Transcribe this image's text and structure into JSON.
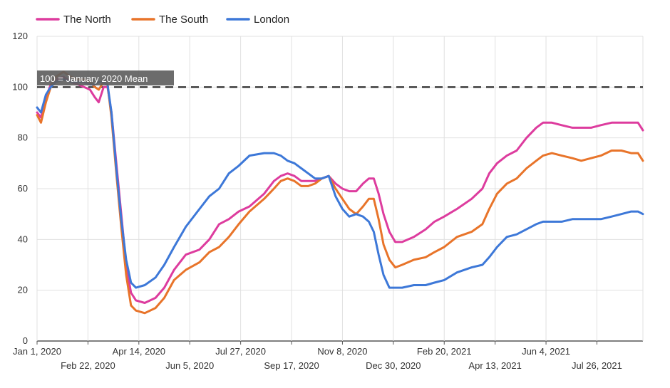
{
  "chart_data": {
    "type": "line",
    "title": "",
    "xlabel": "",
    "ylabel": "",
    "ylim": [
      0,
      120
    ],
    "y_ticks": [
      0,
      20,
      40,
      60,
      80,
      100,
      120
    ],
    "x_range": [
      "2020-01-01",
      "2021-09-11"
    ],
    "x_ticks": [
      {
        "date": "2020-01-01",
        "label": "Jan 1, 2020",
        "row": 1
      },
      {
        "date": "2020-02-22",
        "label": "Feb 22, 2020",
        "row": 2
      },
      {
        "date": "2020-04-14",
        "label": "Apr 14, 2020",
        "row": 1
      },
      {
        "date": "2020-06-05",
        "label": "Jun 5, 2020",
        "row": 2
      },
      {
        "date": "2020-07-27",
        "label": "Jul 27, 2020",
        "row": 1
      },
      {
        "date": "2020-09-17",
        "label": "Sep 17, 2020",
        "row": 2
      },
      {
        "date": "2020-11-08",
        "label": "Nov 8, 2020",
        "row": 1
      },
      {
        "date": "2020-12-30",
        "label": "Dec 30, 2020",
        "row": 2
      },
      {
        "date": "2021-02-20",
        "label": "Feb 20, 2021",
        "row": 1
      },
      {
        "date": "2021-04-13",
        "label": "Apr 13, 2021",
        "row": 2
      },
      {
        "date": "2021-06-04",
        "label": "Jun 4, 2021",
        "row": 1
      },
      {
        "date": "2021-07-26",
        "label": "Jul 26, 2021",
        "row": 2
      }
    ],
    "grid": true,
    "legend_position": "top-left",
    "reference_line": {
      "y": 100,
      "label": "100 = January 2020 Mean",
      "style": "dashed",
      "color": "#222222"
    },
    "series": [
      {
        "name": "The North",
        "color": "#DD3C9E",
        "points": [
          [
            "2020-01-01",
            90
          ],
          [
            "2020-01-05",
            88
          ],
          [
            "2020-01-10",
            96
          ],
          [
            "2020-01-15",
            101
          ],
          [
            "2020-01-20",
            103
          ],
          [
            "2020-01-28",
            104
          ],
          [
            "2020-02-05",
            102
          ],
          [
            "2020-02-12",
            101
          ],
          [
            "2020-02-18",
            100
          ],
          [
            "2020-02-24",
            99
          ],
          [
            "2020-02-29",
            96
          ],
          [
            "2020-03-04",
            94
          ],
          [
            "2020-03-09",
            100
          ],
          [
            "2020-03-13",
            100
          ],
          [
            "2020-03-17",
            90
          ],
          [
            "2020-03-22",
            70
          ],
          [
            "2020-03-27",
            50
          ],
          [
            "2020-04-01",
            30
          ],
          [
            "2020-04-06",
            19
          ],
          [
            "2020-04-11",
            16
          ],
          [
            "2020-04-20",
            15
          ],
          [
            "2020-05-01",
            17
          ],
          [
            "2020-05-10",
            21
          ],
          [
            "2020-05-20",
            28
          ],
          [
            "2020-06-01",
            34
          ],
          [
            "2020-06-15",
            36
          ],
          [
            "2020-06-25",
            40
          ],
          [
            "2020-07-05",
            46
          ],
          [
            "2020-07-15",
            48
          ],
          [
            "2020-07-25",
            51
          ],
          [
            "2020-08-05",
            53
          ],
          [
            "2020-08-20",
            58
          ],
          [
            "2020-08-30",
            63
          ],
          [
            "2020-09-06",
            65
          ],
          [
            "2020-09-13",
            66
          ],
          [
            "2020-09-20",
            65
          ],
          [
            "2020-09-27",
            63
          ],
          [
            "2020-10-04",
            63
          ],
          [
            "2020-10-11",
            63
          ],
          [
            "2020-10-18",
            64
          ],
          [
            "2020-10-25",
            65
          ],
          [
            "2020-11-01",
            62
          ],
          [
            "2020-11-08",
            60
          ],
          [
            "2020-11-15",
            59
          ],
          [
            "2020-11-22",
            59
          ],
          [
            "2020-11-29",
            62
          ],
          [
            "2020-12-05",
            64
          ],
          [
            "2020-12-10",
            64
          ],
          [
            "2020-12-15",
            58
          ],
          [
            "2020-12-20",
            50
          ],
          [
            "2020-12-26",
            43
          ],
          [
            "2021-01-01",
            39
          ],
          [
            "2021-01-08",
            39
          ],
          [
            "2021-01-20",
            41
          ],
          [
            "2021-02-01",
            44
          ],
          [
            "2021-02-10",
            47
          ],
          [
            "2021-02-20",
            49
          ],
          [
            "2021-03-05",
            52
          ],
          [
            "2021-03-20",
            56
          ],
          [
            "2021-03-31",
            60
          ],
          [
            "2021-04-07",
            66
          ],
          [
            "2021-04-15",
            70
          ],
          [
            "2021-04-25",
            73
          ],
          [
            "2021-05-05",
            75
          ],
          [
            "2021-05-15",
            80
          ],
          [
            "2021-05-25",
            84
          ],
          [
            "2021-06-01",
            86
          ],
          [
            "2021-06-10",
            86
          ],
          [
            "2021-06-20",
            85
          ],
          [
            "2021-07-01",
            84
          ],
          [
            "2021-07-10",
            84
          ],
          [
            "2021-07-20",
            84
          ],
          [
            "2021-07-30",
            85
          ],
          [
            "2021-08-10",
            86
          ],
          [
            "2021-08-20",
            86
          ],
          [
            "2021-08-30",
            86
          ],
          [
            "2021-09-06",
            86
          ],
          [
            "2021-09-11",
            83
          ]
        ]
      },
      {
        "name": "The South",
        "color": "#E8742A",
        "points": [
          [
            "2020-01-01",
            89
          ],
          [
            "2020-01-05",
            86
          ],
          [
            "2020-01-10",
            94
          ],
          [
            "2020-01-15",
            100
          ],
          [
            "2020-01-20",
            104
          ],
          [
            "2020-01-28",
            106
          ],
          [
            "2020-02-05",
            104
          ],
          [
            "2020-02-12",
            103
          ],
          [
            "2020-02-18",
            103
          ],
          [
            "2020-02-24",
            102
          ],
          [
            "2020-02-29",
            100
          ],
          [
            "2020-03-04",
            99
          ],
          [
            "2020-03-09",
            102
          ],
          [
            "2020-03-13",
            101
          ],
          [
            "2020-03-17",
            88
          ],
          [
            "2020-03-22",
            66
          ],
          [
            "2020-03-27",
            45
          ],
          [
            "2020-04-01",
            26
          ],
          [
            "2020-04-06",
            14
          ],
          [
            "2020-04-11",
            12
          ],
          [
            "2020-04-20",
            11
          ],
          [
            "2020-05-01",
            13
          ],
          [
            "2020-05-10",
            17
          ],
          [
            "2020-05-20",
            24
          ],
          [
            "2020-06-01",
            28
          ],
          [
            "2020-06-15",
            31
          ],
          [
            "2020-06-25",
            35
          ],
          [
            "2020-07-05",
            37
          ],
          [
            "2020-07-15",
            41
          ],
          [
            "2020-07-25",
            46
          ],
          [
            "2020-08-05",
            51
          ],
          [
            "2020-08-20",
            56
          ],
          [
            "2020-08-30",
            60
          ],
          [
            "2020-09-06",
            63
          ],
          [
            "2020-09-13",
            64
          ],
          [
            "2020-09-20",
            63
          ],
          [
            "2020-09-27",
            61
          ],
          [
            "2020-10-04",
            61
          ],
          [
            "2020-10-11",
            62
          ],
          [
            "2020-10-18",
            64
          ],
          [
            "2020-10-25",
            65
          ],
          [
            "2020-11-01",
            60
          ],
          [
            "2020-11-08",
            56
          ],
          [
            "2020-11-15",
            52
          ],
          [
            "2020-11-22",
            50
          ],
          [
            "2020-11-29",
            53
          ],
          [
            "2020-12-05",
            56
          ],
          [
            "2020-12-10",
            56
          ],
          [
            "2020-12-15",
            48
          ],
          [
            "2020-12-20",
            38
          ],
          [
            "2020-12-26",
            32
          ],
          [
            "2021-01-01",
            29
          ],
          [
            "2021-01-08",
            30
          ],
          [
            "2021-01-20",
            32
          ],
          [
            "2021-02-01",
            33
          ],
          [
            "2021-02-10",
            35
          ],
          [
            "2021-02-20",
            37
          ],
          [
            "2021-03-05",
            41
          ],
          [
            "2021-03-20",
            43
          ],
          [
            "2021-03-31",
            46
          ],
          [
            "2021-04-07",
            52
          ],
          [
            "2021-04-15",
            58
          ],
          [
            "2021-04-25",
            62
          ],
          [
            "2021-05-05",
            64
          ],
          [
            "2021-05-15",
            68
          ],
          [
            "2021-05-25",
            71
          ],
          [
            "2021-06-01",
            73
          ],
          [
            "2021-06-10",
            74
          ],
          [
            "2021-06-20",
            73
          ],
          [
            "2021-07-01",
            72
          ],
          [
            "2021-07-10",
            71
          ],
          [
            "2021-07-20",
            72
          ],
          [
            "2021-07-30",
            73
          ],
          [
            "2021-08-10",
            75
          ],
          [
            "2021-08-20",
            75
          ],
          [
            "2021-08-30",
            74
          ],
          [
            "2021-09-06",
            74
          ],
          [
            "2021-09-11",
            71
          ]
        ]
      },
      {
        "name": "London",
        "color": "#3D78D8",
        "points": [
          [
            "2020-01-01",
            92
          ],
          [
            "2020-01-05",
            90
          ],
          [
            "2020-01-10",
            97
          ],
          [
            "2020-01-15",
            100
          ],
          [
            "2020-01-20",
            102
          ],
          [
            "2020-01-28",
            103
          ],
          [
            "2020-02-05",
            102
          ],
          [
            "2020-02-12",
            102
          ],
          [
            "2020-02-18",
            102
          ],
          [
            "2020-02-24",
            101
          ],
          [
            "2020-02-29",
            101
          ],
          [
            "2020-03-04",
            102
          ],
          [
            "2020-03-09",
            102
          ],
          [
            "2020-03-13",
            101
          ],
          [
            "2020-03-17",
            90
          ],
          [
            "2020-03-22",
            68
          ],
          [
            "2020-03-27",
            48
          ],
          [
            "2020-04-01",
            32
          ],
          [
            "2020-04-06",
            23
          ],
          [
            "2020-04-11",
            21
          ],
          [
            "2020-04-20",
            22
          ],
          [
            "2020-05-01",
            25
          ],
          [
            "2020-05-10",
            30
          ],
          [
            "2020-05-20",
            37
          ],
          [
            "2020-06-01",
            45
          ],
          [
            "2020-06-15",
            52
          ],
          [
            "2020-06-25",
            57
          ],
          [
            "2020-07-05",
            60
          ],
          [
            "2020-07-15",
            66
          ],
          [
            "2020-07-25",
            69
          ],
          [
            "2020-08-05",
            73
          ],
          [
            "2020-08-20",
            74
          ],
          [
            "2020-08-30",
            74
          ],
          [
            "2020-09-06",
            73
          ],
          [
            "2020-09-13",
            71
          ],
          [
            "2020-09-20",
            70
          ],
          [
            "2020-09-27",
            68
          ],
          [
            "2020-10-04",
            66
          ],
          [
            "2020-10-11",
            64
          ],
          [
            "2020-10-18",
            64
          ],
          [
            "2020-10-25",
            65
          ],
          [
            "2020-11-01",
            57
          ],
          [
            "2020-11-08",
            52
          ],
          [
            "2020-11-15",
            49
          ],
          [
            "2020-11-22",
            50
          ],
          [
            "2020-11-29",
            49
          ],
          [
            "2020-12-05",
            47
          ],
          [
            "2020-12-10",
            43
          ],
          [
            "2020-12-15",
            34
          ],
          [
            "2020-12-20",
            26
          ],
          [
            "2020-12-26",
            21
          ],
          [
            "2021-01-01",
            21
          ],
          [
            "2021-01-08",
            21
          ],
          [
            "2021-01-20",
            22
          ],
          [
            "2021-02-01",
            22
          ],
          [
            "2021-02-10",
            23
          ],
          [
            "2021-02-20",
            24
          ],
          [
            "2021-03-05",
            27
          ],
          [
            "2021-03-20",
            29
          ],
          [
            "2021-03-31",
            30
          ],
          [
            "2021-04-07",
            33
          ],
          [
            "2021-04-15",
            37
          ],
          [
            "2021-04-25",
            41
          ],
          [
            "2021-05-05",
            42
          ],
          [
            "2021-05-15",
            44
          ],
          [
            "2021-05-25",
            46
          ],
          [
            "2021-06-01",
            47
          ],
          [
            "2021-06-10",
            47
          ],
          [
            "2021-06-20",
            47
          ],
          [
            "2021-07-01",
            48
          ],
          [
            "2021-07-10",
            48
          ],
          [
            "2021-07-20",
            48
          ],
          [
            "2021-07-30",
            48
          ],
          [
            "2021-08-10",
            49
          ],
          [
            "2021-08-20",
            50
          ],
          [
            "2021-08-30",
            51
          ],
          [
            "2021-09-06",
            51
          ],
          [
            "2021-09-11",
            50
          ]
        ]
      }
    ]
  }
}
